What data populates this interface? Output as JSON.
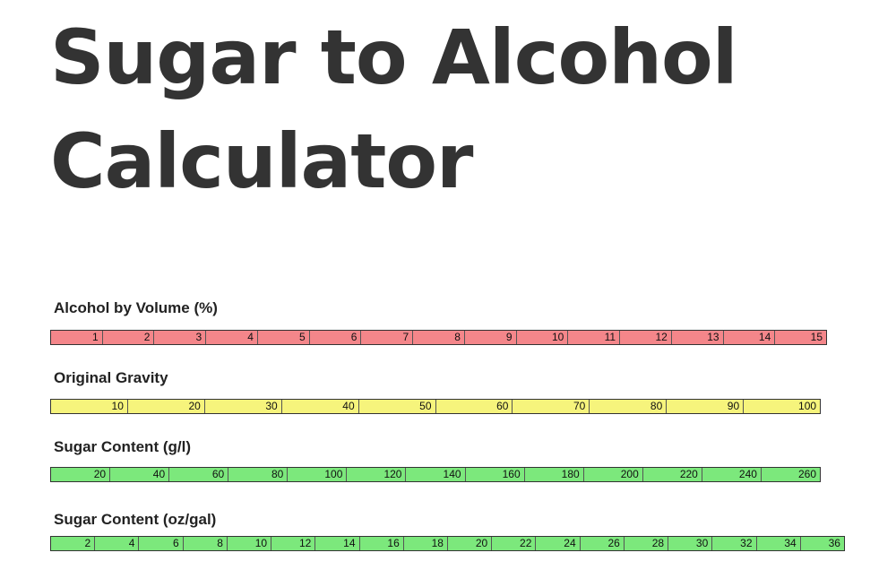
{
  "title": {
    "line1": "Sugar to Alcohol",
    "line2": "Calculator"
  },
  "scales": [
    {
      "label": "Alcohol by Volume (%)",
      "color": "#f4868a",
      "values": [
        "1",
        "2",
        "3",
        "4",
        "5",
        "6",
        "7",
        "8",
        "9",
        "10",
        "11",
        "12",
        "13",
        "14",
        "15"
      ]
    },
    {
      "label": "Original Gravity",
      "color": "#f6f47c",
      "values": [
        "10",
        "20",
        "30",
        "40",
        "50",
        "60",
        "70",
        "80",
        "90",
        "100"
      ]
    },
    {
      "label": "Sugar Content (g/l)",
      "color": "#7ce87c",
      "values": [
        "20",
        "40",
        "60",
        "80",
        "100",
        "120",
        "140",
        "160",
        "180",
        "200",
        "220",
        "240",
        "260"
      ]
    },
    {
      "label": "Sugar Content (oz/gal)",
      "color": "#7ce87c",
      "values": [
        "2",
        "4",
        "6",
        "8",
        "10",
        "12",
        "14",
        "16",
        "18",
        "20",
        "22",
        "24",
        "26",
        "28",
        "30",
        "32",
        "34",
        "36"
      ]
    }
  ]
}
